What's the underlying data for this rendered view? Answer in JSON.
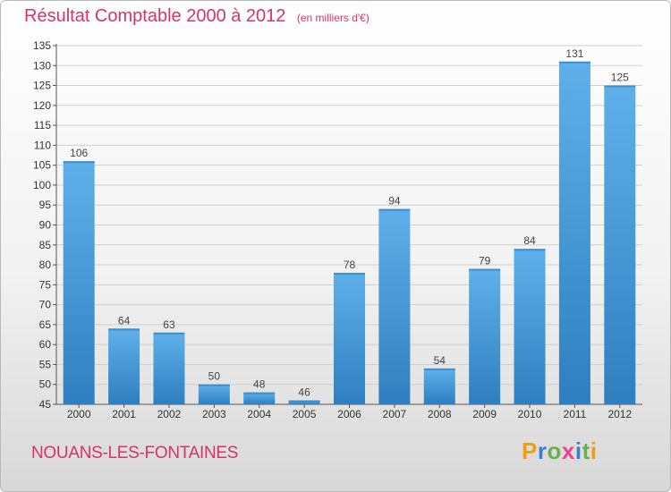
{
  "header": {
    "title": "Résultat Comptable 2000 à 2012",
    "subtitle": "(en milliers d'€)"
  },
  "commune": "NOUANS-LES-FONTAINES",
  "logo": {
    "text": "Proxiti",
    "letter_colors": [
      "#f39c12",
      "#3a7fc9",
      "#6ab04c",
      "#e84393",
      "#3a7fc9",
      "#6ab04c",
      "#f39c12"
    ]
  },
  "chart_data": {
    "type": "bar",
    "title": "Résultat Comptable 2000 à 2012",
    "subtitle": "(en milliers d'€)",
    "xlabel": "",
    "ylabel": "",
    "categories": [
      "2000",
      "2001",
      "2002",
      "2003",
      "2004",
      "2005",
      "2006",
      "2007",
      "2008",
      "2009",
      "2010",
      "2011",
      "2012"
    ],
    "values": [
      106,
      64,
      63,
      50,
      48,
      46,
      78,
      94,
      54,
      79,
      84,
      131,
      125
    ],
    "ylim": [
      45,
      135
    ],
    "yticks": [
      45,
      50,
      55,
      60,
      65,
      70,
      75,
      80,
      85,
      90,
      95,
      100,
      105,
      110,
      115,
      120,
      125,
      130,
      135
    ],
    "grid": true,
    "data_labels": true,
    "colors": {
      "bar_light": "#5fb0ea",
      "bar_dark": "#2f7fc0",
      "grid": "#d0d0d0",
      "text": "#d6336c"
    }
  }
}
